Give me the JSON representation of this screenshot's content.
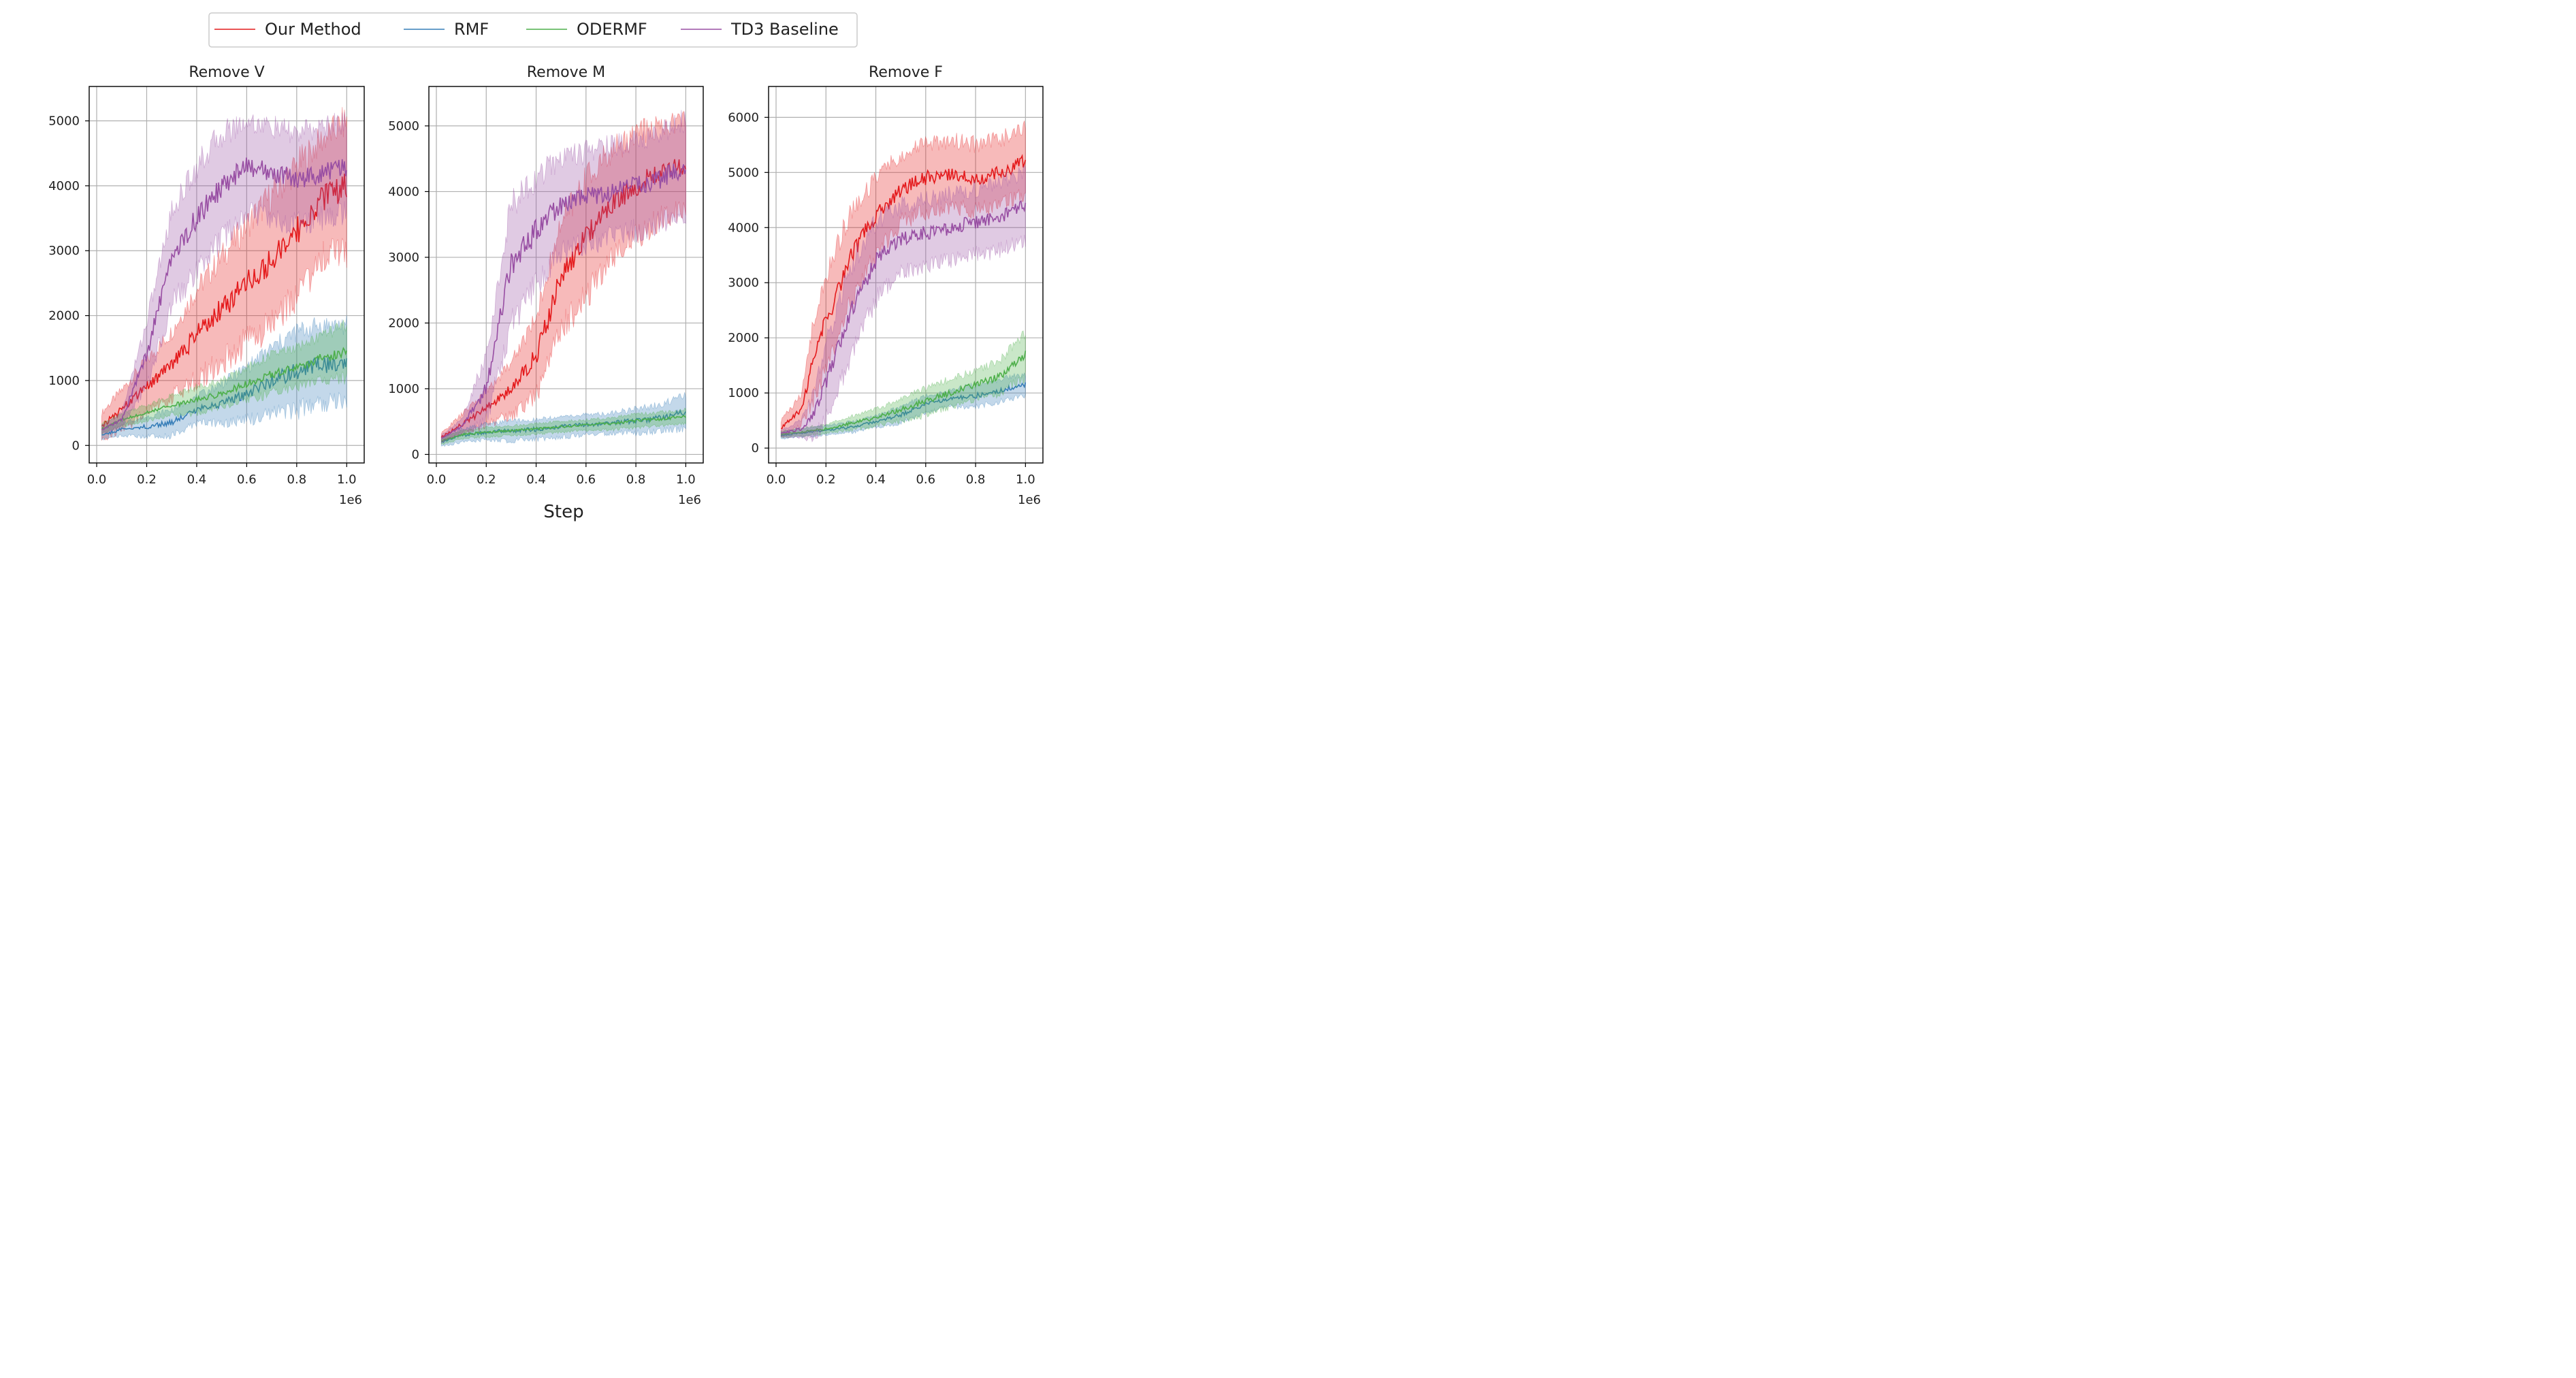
{
  "chart_data": [
    {
      "type": "line",
      "title": "Remove V",
      "xlabel": "",
      "ylabel": "",
      "x_offset_text": "1e6",
      "xlim": [
        -0.03,
        1.07
      ],
      "ylim": [
        -270,
        5530
      ],
      "xticks": [
        "0.0",
        "0.2",
        "0.4",
        "0.6",
        "0.8",
        "1.0"
      ],
      "yticks": [
        "0",
        "1000",
        "2000",
        "3000",
        "4000",
        "5000"
      ],
      "grid": true,
      "x": [
        0.02,
        0.1,
        0.2,
        0.3,
        0.4,
        0.5,
        0.6,
        0.7,
        0.8,
        0.9,
        1.0
      ],
      "series": [
        {
          "name": "Our Method",
          "values": [
            300,
            550,
            900,
            1250,
            1700,
            2100,
            2500,
            2850,
            3300,
            3800,
            4000
          ],
          "band": [
            200,
            300,
            400,
            500,
            700,
            800,
            900,
            1000,
            1000,
            900,
            1000
          ]
        },
        {
          "name": "RMF",
          "values": [
            160,
            250,
            290,
            350,
            550,
            650,
            800,
            1000,
            1150,
            1250,
            1250
          ],
          "band": [
            80,
            100,
            150,
            200,
            200,
            300,
            400,
            500,
            600,
            600,
            600
          ]
        },
        {
          "name": "ODERMF",
          "values": [
            250,
            400,
            500,
            620,
            700,
            800,
            950,
            1100,
            1200,
            1350,
            1450
          ],
          "band": [
            80,
            100,
            120,
            150,
            200,
            200,
            250,
            300,
            300,
            350,
            400
          ]
        },
        {
          "name": "TD3 Baseline",
          "values": [
            240,
            400,
            1400,
            2900,
            3500,
            4000,
            4300,
            4200,
            4100,
            4200,
            4300
          ],
          "band": [
            60,
            100,
            500,
            700,
            800,
            800,
            700,
            700,
            700,
            700,
            700
          ]
        }
      ]
    },
    {
      "type": "line",
      "title": "Remove M",
      "xlabel": "",
      "ylabel": "",
      "x_offset_text": "1e6",
      "xlim": [
        -0.03,
        1.07
      ],
      "ylim": [
        -130,
        5600
      ],
      "xticks": [
        "0.0",
        "0.2",
        "0.4",
        "0.6",
        "0.8",
        "1.0"
      ],
      "yticks": [
        "0",
        "1000",
        "2000",
        "3000",
        "4000",
        "5000"
      ],
      "grid": true,
      "x": [
        0.02,
        0.1,
        0.2,
        0.3,
        0.4,
        0.5,
        0.6,
        0.7,
        0.8,
        0.9,
        1.0
      ],
      "series": [
        {
          "name": "Our Method",
          "values": [
            260,
            450,
            700,
            1000,
            1500,
            2700,
            3300,
            3800,
            4100,
            4300,
            4400
          ],
          "band": [
            60,
            150,
            250,
            400,
            600,
            800,
            900,
            800,
            800,
            700,
            700
          ]
        },
        {
          "name": "RMF",
          "values": [
            180,
            290,
            340,
            360,
            380,
            420,
            450,
            480,
            510,
            560,
            650
          ],
          "band": [
            60,
            100,
            120,
            150,
            150,
            150,
            150,
            150,
            180,
            200,
            250
          ]
        },
        {
          "name": "ODERMF",
          "values": [
            200,
            300,
            340,
            360,
            390,
            420,
            450,
            470,
            510,
            540,
            580
          ],
          "band": [
            50,
            60,
            70,
            70,
            80,
            80,
            80,
            90,
            100,
            100,
            100
          ]
        },
        {
          "name": "TD3 Baseline",
          "values": [
            240,
            420,
            1000,
            2900,
            3400,
            3800,
            3900,
            4000,
            4100,
            4200,
            4400
          ],
          "band": [
            60,
            100,
            500,
            900,
            800,
            700,
            700,
            700,
            700,
            700,
            700
          ]
        }
      ]
    },
    {
      "type": "line",
      "title": "Remove F",
      "xlabel": "",
      "ylabel": "",
      "x_offset_text": "1e6",
      "xlim": [
        -0.03,
        1.07
      ],
      "ylim": [
        -270,
        6560
      ],
      "xticks": [
        "0.0",
        "0.2",
        "0.4",
        "0.6",
        "0.8",
        "1.0"
      ],
      "yticks": [
        "0",
        "1000",
        "2000",
        "3000",
        "4000",
        "5000",
        "6000"
      ],
      "grid": true,
      "x": [
        0.02,
        0.1,
        0.15,
        0.2,
        0.3,
        0.4,
        0.5,
        0.6,
        0.7,
        0.8,
        0.9,
        1.0
      ],
      "series": [
        {
          "name": "Our Method",
          "values": [
            350,
            700,
            1600,
            2300,
            3500,
            4200,
            4700,
            4900,
            5000,
            4900,
            5000,
            5200
          ],
          "band": [
            150,
            250,
            700,
            800,
            800,
            700,
            600,
            600,
            600,
            600,
            600,
            600
          ]
        },
        {
          "name": "RMF",
          "values": [
            230,
            270,
            300,
            320,
            380,
            480,
            600,
            800,
            900,
            950,
            1050,
            1150
          ],
          "band": [
            60,
            70,
            80,
            80,
            100,
            100,
            150,
            150,
            150,
            200,
            200,
            200
          ]
        },
        {
          "name": "ODERMF",
          "values": [
            250,
            290,
            320,
            350,
            450,
            550,
            700,
            850,
            1000,
            1150,
            1300,
            1700
          ],
          "band": [
            60,
            70,
            80,
            80,
            120,
            150,
            200,
            250,
            250,
            250,
            300,
            400
          ]
        },
        {
          "name": "TD3 Baseline",
          "values": [
            260,
            350,
            600,
            1200,
            2500,
            3400,
            3800,
            3900,
            4000,
            4100,
            4200,
            4400
          ],
          "band": [
            60,
            150,
            400,
            700,
            800,
            700,
            600,
            600,
            600,
            600,
            600,
            600
          ]
        }
      ]
    }
  ],
  "legend": {
    "placement": "top-center",
    "entries": [
      {
        "label": "Our Method",
        "color": "#e41a1c"
      },
      {
        "label": "RMF",
        "color": "#377eb8"
      },
      {
        "label": "ODERMF",
        "color": "#4daf4a"
      },
      {
        "label": "TD3 Baseline",
        "color": "#984ea3"
      }
    ]
  },
  "shared_xlabel": "Step"
}
